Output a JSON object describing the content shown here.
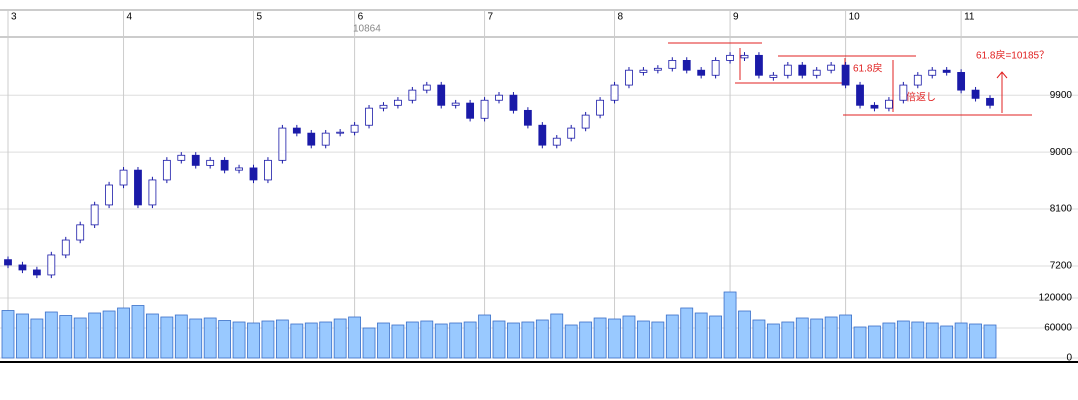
{
  "chart_data": {
    "type": "candlestick",
    "categories": [
      "3",
      null,
      null,
      null,
      null,
      null,
      null,
      null,
      "4",
      null,
      null,
      null,
      null,
      null,
      null,
      null,
      null,
      "5",
      null,
      null,
      null,
      null,
      null,
      null,
      "6",
      null,
      null,
      null,
      null,
      null,
      null,
      null,
      null,
      "7",
      null,
      null,
      null,
      null,
      null,
      null,
      null,
      null,
      "8",
      null,
      null,
      null,
      null,
      null,
      null,
      null,
      "9",
      null,
      null,
      null,
      null,
      null,
      null,
      null,
      "10",
      null,
      null,
      null,
      null,
      null,
      null,
      null,
      "11",
      null,
      null
    ],
    "open": [
      7300,
      7216,
      7137,
      7058,
      7374,
      7610,
      7850,
      8165,
      8480,
      8715,
      8165,
      8560,
      8870,
      8950,
      8790,
      8870,
      8715,
      8750,
      8560,
      8870,
      9380,
      9300,
      9110,
      9300,
      9315,
      9425,
      9695,
      9740,
      9820,
      9980,
      10060,
      9740,
      9775,
      9535,
      9820,
      9900,
      9660,
      9425,
      9110,
      9220,
      9380,
      9585,
      9820,
      10060,
      10260,
      10295,
      10325,
      10450,
      10295,
      10215,
      10450,
      10490,
      10530,
      10180,
      10215,
      10375,
      10215,
      10295,
      10375,
      10060,
      9740,
      9695,
      9820,
      10060,
      10215,
      10295,
      10260,
      9980,
      9850
    ],
    "high": [
      7350,
      7266,
      7187,
      7424,
      7660,
      7900,
      8215,
      8530,
      8765,
      8765,
      8610,
      8920,
      9000,
      9000,
      8920,
      8920,
      8800,
      8800,
      8920,
      9430,
      9430,
      9350,
      9350,
      9365,
      9475,
      9745,
      9790,
      9870,
      10030,
      10110,
      10110,
      9825,
      9825,
      9870,
      9950,
      9950,
      9710,
      9475,
      9270,
      9430,
      9635,
      9870,
      10110,
      10345,
      10345,
      10375,
      10500,
      10500,
      10345,
      10500,
      10580,
      10580,
      10580,
      10265,
      10425,
      10425,
      10345,
      10425,
      10425,
      10110,
      9790,
      9870,
      10110,
      10265,
      10345,
      10345,
      10310,
      10030,
      9900
    ],
    "low": [
      7166,
      7087,
      7008,
      7008,
      7324,
      7560,
      7800,
      8115,
      8430,
      8115,
      8115,
      8510,
      8820,
      8740,
      8740,
      8665,
      8665,
      8510,
      8510,
      8820,
      9250,
      9060,
      9060,
      9250,
      9265,
      9375,
      9645,
      9690,
      9770,
      9930,
      9690,
      9690,
      9485,
      9485,
      9770,
      9610,
      9375,
      9060,
      9060,
      9170,
      9330,
      9535,
      9770,
      10010,
      10210,
      10245,
      10275,
      10245,
      10165,
      10165,
      10400,
      10440,
      10165,
      10130,
      10165,
      10165,
      10165,
      10245,
      10010,
      9690,
      9645,
      9645,
      9770,
      10010,
      10165,
      10210,
      9930,
      9800,
      9690
    ],
    "close": [
      7216,
      7137,
      7058,
      7374,
      7610,
      7850,
      8165,
      8480,
      8715,
      8165,
      8560,
      8870,
      8950,
      8790,
      8870,
      8715,
      8750,
      8560,
      8870,
      9380,
      9300,
      9110,
      9300,
      9315,
      9425,
      9695,
      9740,
      9820,
      9980,
      10060,
      9740,
      9775,
      9535,
      9820,
      9900,
      9660,
      9425,
      9110,
      9220,
      9380,
      9585,
      9820,
      10060,
      10295,
      10295,
      10325,
      10450,
      10295,
      10215,
      10450,
      10530,
      10530,
      10215,
      10215,
      10375,
      10215,
      10295,
      10375,
      10060,
      9740,
      9695,
      9820,
      10060,
      10215,
      10295,
      10260,
      9980,
      9850,
      9740
    ],
    "volume": [
      95000,
      88000,
      78000,
      92000,
      85000,
      80000,
      90000,
      94000,
      100000,
      105000,
      88000,
      82000,
      86000,
      78000,
      80000,
      75000,
      72000,
      70000,
      74000,
      76000,
      68000,
      70000,
      72000,
      78000,
      82000,
      60000,
      70000,
      66000,
      72000,
      74000,
      68000,
      70000,
      72000,
      86000,
      74000,
      70000,
      72000,
      76000,
      88000,
      66000,
      72000,
      80000,
      78000,
      84000,
      74000,
      72000,
      86000,
      100000,
      90000,
      84000,
      132000,
      94000,
      76000,
      68000,
      72000,
      80000,
      78000,
      82000,
      86000,
      62000,
      64000,
      70000,
      74000,
      72000,
      70000,
      64000,
      70000,
      68000,
      66000
    ],
    "up_color": "#ffffff",
    "down_color": "#1a1aa8",
    "volume_color": "#99c9ff",
    "ylim": [
      6820,
      10820
    ],
    "yticks": [
      7200,
      8100,
      9000,
      9900
    ],
    "y2lim": [
      0,
      136000
    ],
    "y2ticks": [
      0,
      60000,
      120000
    ],
    "grid": true,
    "annotations": [
      "10864",
      "61.8戻",
      "倍返し",
      "61.8戻=10185？"
    ]
  }
}
